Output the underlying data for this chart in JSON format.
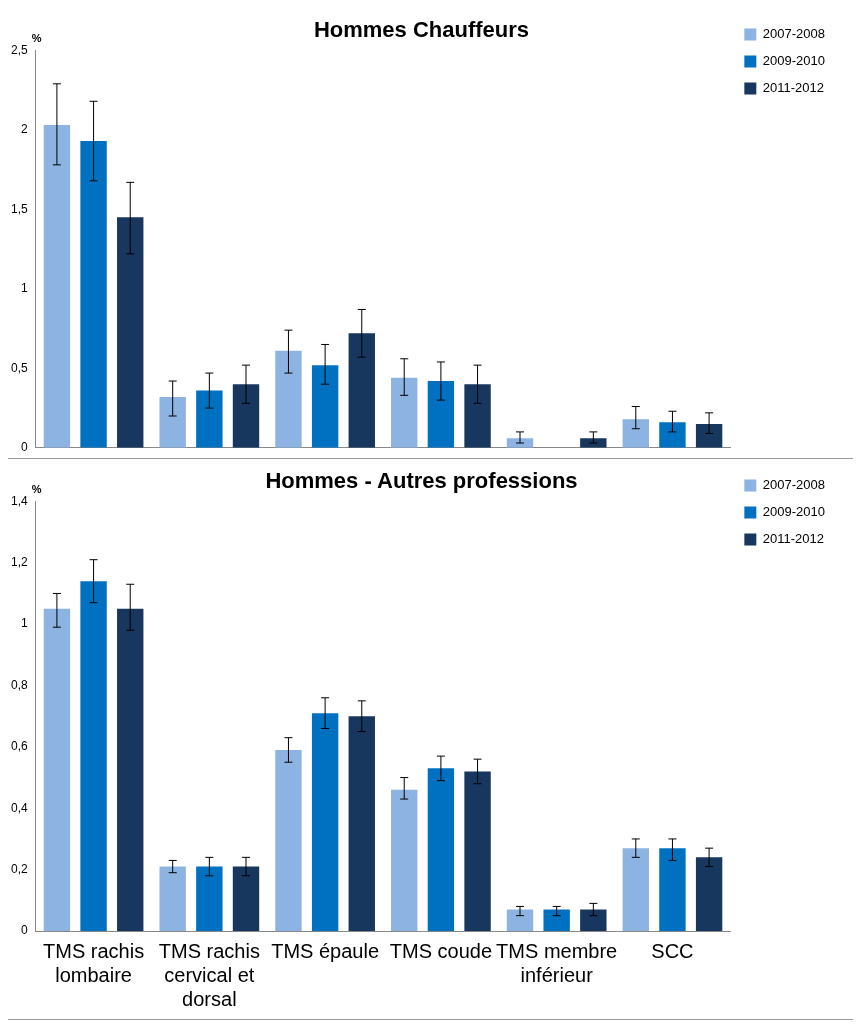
{
  "chart_data": [
    {
      "type": "bar",
      "title": "Hommes Chauffeurs",
      "ylabel": "%",
      "categories": [
        null,
        null,
        null,
        null,
        null,
        null
      ],
      "series": [
        {
          "name": "2007-2008",
          "color": "#8db3e2",
          "values": [
            2.03,
            0.32,
            0.61,
            0.44,
            0.06,
            0.18
          ],
          "errors": [
            [
              1.78,
              2.29
            ],
            [
              0.2,
              0.42
            ],
            [
              0.47,
              0.74
            ],
            [
              0.33,
              0.56
            ],
            [
              0.03,
              0.1
            ],
            [
              0.12,
              0.26
            ]
          ]
        },
        {
          "name": "2009-2010",
          "color": "#0070c0",
          "values": [
            1.93,
            0.36,
            0.52,
            0.42,
            null,
            0.16
          ],
          "errors": [
            [
              1.68,
              2.18
            ],
            [
              0.25,
              0.47
            ],
            [
              0.4,
              0.65
            ],
            [
              0.3,
              0.54
            ],
            null,
            [
              0.1,
              0.23
            ]
          ]
        },
        {
          "name": "2011-2012",
          "color": "#17375e",
          "values": [
            1.45,
            0.4,
            0.72,
            0.4,
            0.06,
            0.15
          ],
          "errors": [
            [
              1.22,
              1.67
            ],
            [
              0.28,
              0.52
            ],
            [
              0.57,
              0.87
            ],
            [
              0.28,
              0.52
            ],
            [
              0.03,
              0.1
            ],
            [
              0.09,
              0.22
            ]
          ]
        }
      ],
      "ylim": [
        0,
        2.5
      ],
      "yticks": [
        0,
        {
          "value": 0.5,
          "label": "0,5"
        },
        1,
        {
          "value": 1.5,
          "label": "1,5"
        },
        2,
        {
          "value": 2.5,
          "label": "2,5"
        }
      ],
      "grid": false,
      "legend": "top right",
      "tick_labels": "y"
    },
    {
      "type": "bar",
      "title": "Hommes - Autres professions",
      "ylabel": "%",
      "categories": [
        "TMS rachis lombaire",
        "TMS rachis cervical et dorsal",
        "TMS épaule",
        "TMS coude",
        "TMS membre inférieur",
        "SCC"
      ],
      "series": [
        {
          "name": "2007-2008",
          "color": "#8db3e2",
          "values": [
            1.05,
            0.21,
            0.59,
            0.46,
            0.07,
            0.27
          ],
          "errors": [
            [
              0.99,
              1.1
            ],
            [
              0.19,
              0.23
            ],
            [
              0.55,
              0.63
            ],
            [
              0.43,
              0.5
            ],
            [
              0.05,
              0.08
            ],
            [
              0.24,
              0.3
            ]
          ]
        },
        {
          "name": "2009-2010",
          "color": "#0070c0",
          "values": [
            1.14,
            0.21,
            0.71,
            0.53,
            0.07,
            0.27
          ],
          "errors": [
            [
              1.07,
              1.21
            ],
            [
              0.18,
              0.24
            ],
            [
              0.66,
              0.76
            ],
            [
              0.49,
              0.57
            ],
            [
              0.05,
              0.08
            ],
            [
              0.23,
              0.3
            ]
          ]
        },
        {
          "name": "2011-2012",
          "color": "#17375e",
          "values": [
            1.05,
            0.21,
            0.7,
            0.52,
            0.07,
            0.24
          ],
          "errors": [
            [
              0.98,
              1.13
            ],
            [
              0.18,
              0.24
            ],
            [
              0.65,
              0.75
            ],
            [
              0.48,
              0.56
            ],
            [
              0.05,
              0.09
            ],
            [
              0.21,
              0.27
            ]
          ]
        }
      ],
      "ylim": [
        0,
        1.4
      ],
      "yticks": [
        0,
        {
          "value": 0.2,
          "label": "0,2"
        },
        {
          "value": 0.4,
          "label": "0,4"
        },
        {
          "value": 0.6,
          "label": "0,6"
        },
        {
          "value": 0.8,
          "label": "0,8"
        },
        1,
        {
          "value": 1.2,
          "label": "1,2"
        },
        {
          "value": 1.4,
          "label": "1,4"
        }
      ],
      "grid": false,
      "legend": "top right"
    }
  ]
}
